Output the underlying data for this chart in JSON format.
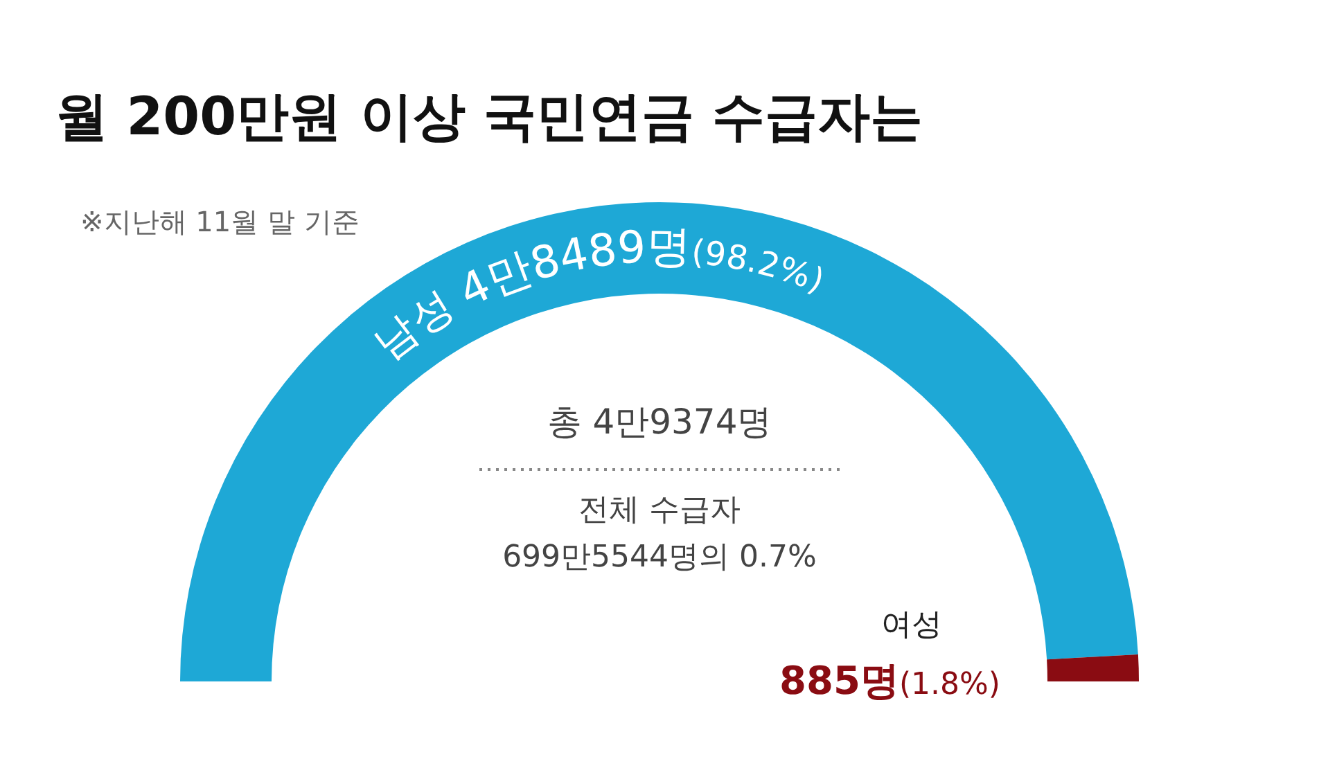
{
  "chart_data": {
    "type": "donut",
    "title": "월 200만원 이상 국민연금 수급자는",
    "subtitle": "※지난해 11월 말 기준",
    "categories": [
      "남성",
      "여성"
    ],
    "values": [
      98.2,
      1.8
    ],
    "colors": [
      "#1ea8d6",
      "#8a0c12"
    ],
    "value_labels": [
      "4만8489명(98.2%)",
      "885명(1.8%)"
    ],
    "annotations": [
      "총 4만9374명",
      "전체 수급자",
      "699만5544명의 0.7%"
    ]
  }
}
